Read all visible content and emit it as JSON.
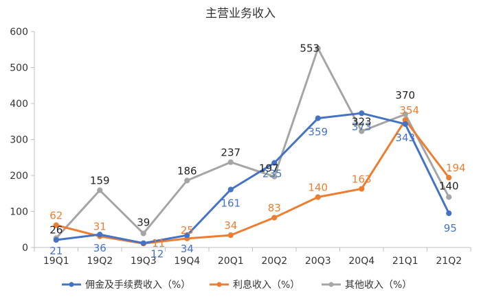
{
  "chart_data": {
    "type": "line",
    "title": "主营业务收入",
    "categories": [
      "19Q1",
      "19Q2",
      "19Q3",
      "19Q4",
      "20Q1",
      "20Q2",
      "20Q3",
      "20Q4",
      "21Q1",
      "21Q2"
    ],
    "ylim": [
      0,
      600
    ],
    "yticks": [
      0,
      100,
      200,
      300,
      400,
      500,
      600
    ],
    "grid": false,
    "legend_position": "bottom",
    "series": [
      {
        "name": "佣金及手续费收入（%）",
        "color": "#4472C4",
        "values": [
          21,
          36,
          12,
          34,
          161,
          235,
          359,
          373,
          343,
          95
        ],
        "labels": [
          "21",
          "36",
          "12",
          "34",
          "161",
          "235",
          "359",
          "373",
          "343",
          "95"
        ]
      },
      {
        "name": "利息收入（%）",
        "color": "#ED7D31",
        "values": [
          62,
          31,
          11,
          25,
          34,
          83,
          140,
          163,
          354,
          194
        ],
        "labels": [
          "62",
          "31",
          "11",
          "25",
          "34",
          "83",
          "140",
          "163",
          "354",
          "194"
        ]
      },
      {
        "name": "其他收入（%）",
        "color": "#A5A5A5",
        "label_color": "#222222",
        "values": [
          26,
          159,
          39,
          186,
          237,
          197,
          553,
          323,
          370,
          140
        ],
        "labels": [
          "26",
          "159",
          "39",
          "186",
          "237",
          "197",
          "553",
          "323",
          "370",
          "140"
        ]
      }
    ]
  }
}
